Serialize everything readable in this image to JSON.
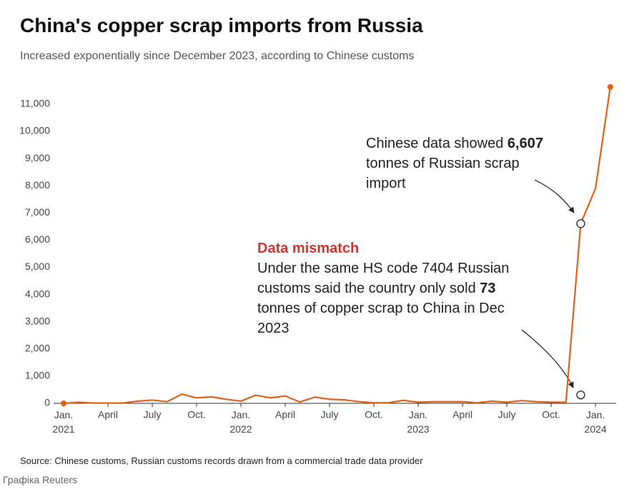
{
  "chart_data": {
    "type": "line",
    "title": "China's copper scrap imports from Russia",
    "subtitle": "Increased exponentially since  December 2023, according to Chinese customs",
    "source": "Source: Chinese customs, Russian customs records drawn from a commercial trade data provider",
    "credit": "Графіка Reuters",
    "categories": [
      "Jan. 2021",
      null,
      null,
      "April",
      null,
      null,
      "July",
      null,
      null,
      "Oct.",
      null,
      null,
      "Jan. 2022",
      null,
      null,
      "April",
      null,
      null,
      "July",
      null,
      null,
      "Oct.",
      null,
      null,
      "Jan. 2023",
      null,
      null,
      "April",
      null,
      null,
      "July",
      null,
      null,
      "Oct.",
      null,
      null,
      "Jan. 2024",
      null
    ],
    "series": [
      {
        "name": "Imports",
        "color": "#e0601c",
        "values": [
          0,
          40,
          10,
          10,
          10,
          80,
          120,
          60,
          340,
          200,
          240,
          150,
          80,
          300,
          200,
          270,
          50,
          230,
          150,
          130,
          60,
          20,
          20,
          110,
          40,
          60,
          60,
          60,
          20,
          80,
          40,
          100,
          60,
          40,
          40,
          6607,
          7900,
          11630
        ]
      }
    ],
    "ylim": [
      0,
      11700
    ],
    "yticks": [
      0,
      {
        "value": 1000,
        "label": "1,000"
      },
      {
        "value": 2000,
        "label": "2,000"
      },
      {
        "value": 3000,
        "label": "3,000"
      },
      {
        "value": 4000,
        "label": "4,000"
      },
      {
        "value": 5000,
        "label": "5,000"
      },
      {
        "value": 6000,
        "label": "6,000"
      },
      {
        "value": 7000,
        "label": "7,000"
      },
      {
        "value": 8000,
        "label": "8,000"
      },
      {
        "value": 9000,
        "label": "9,000"
      },
      {
        "value": 10000,
        "label": "10,000"
      },
      {
        "value": 11000,
        "label": "11,000"
      }
    ],
    "grid": false,
    "annotations": [
      {
        "parts": [
          "Chinese data showed ",
          "6,607",
          " tonnes of Russian scrap import"
        ],
        "value": 6607
      },
      {
        "heading": "Data mismatch",
        "parts": [
          "Under the same HS code 7404 Russian customs said the country only sold ",
          "73",
          " tonnes of copper scrap to China in Dec 2023"
        ],
        "value": 73
      }
    ]
  }
}
